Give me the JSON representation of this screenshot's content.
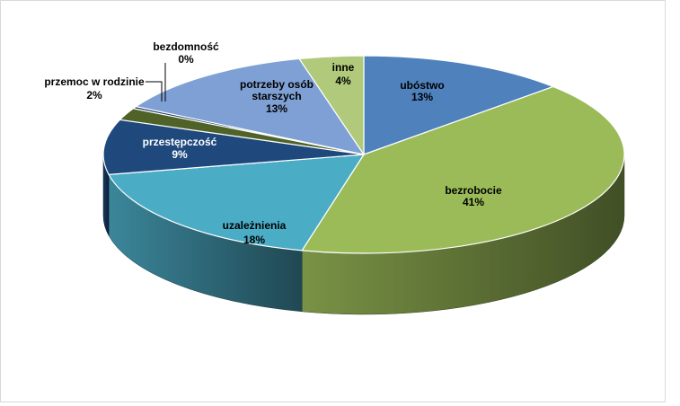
{
  "chart_data": {
    "type": "pie",
    "title": "",
    "style": "3d",
    "slices": [
      {
        "label": "ubóstwo",
        "value": 13,
        "value_label": "13%",
        "color": "#4f81bd",
        "label_color": "#000000"
      },
      {
        "label": "bezrobocie",
        "value": 41,
        "value_label": "41%",
        "color": "#9bbb59",
        "label_color": "#000000"
      },
      {
        "label": "uzależnienia",
        "value": 18,
        "value_label": "18%",
        "color": "#4bacc6",
        "label_color": "#000000"
      },
      {
        "label": "przestępczość",
        "value": 9,
        "value_label": "9%",
        "color": "#1f497d",
        "label_color": "#ffffff"
      },
      {
        "label": "przemoc w rodzinie",
        "value": 2,
        "value_label": "2%",
        "color": "#4f6228",
        "label_color": "#000000"
      },
      {
        "label": "bezdomność",
        "value": 0,
        "value_label": "0%",
        "color": "#17375e",
        "label_color": "#000000"
      },
      {
        "label": "potrzeby osób starszych",
        "value": 13,
        "value_label": "13%",
        "color": "#7ea0d4",
        "label_color": "#000000"
      },
      {
        "label": "inne",
        "value": 4,
        "value_label": "4%",
        "color": "#b0c97a",
        "label_color": "#000000"
      }
    ]
  }
}
